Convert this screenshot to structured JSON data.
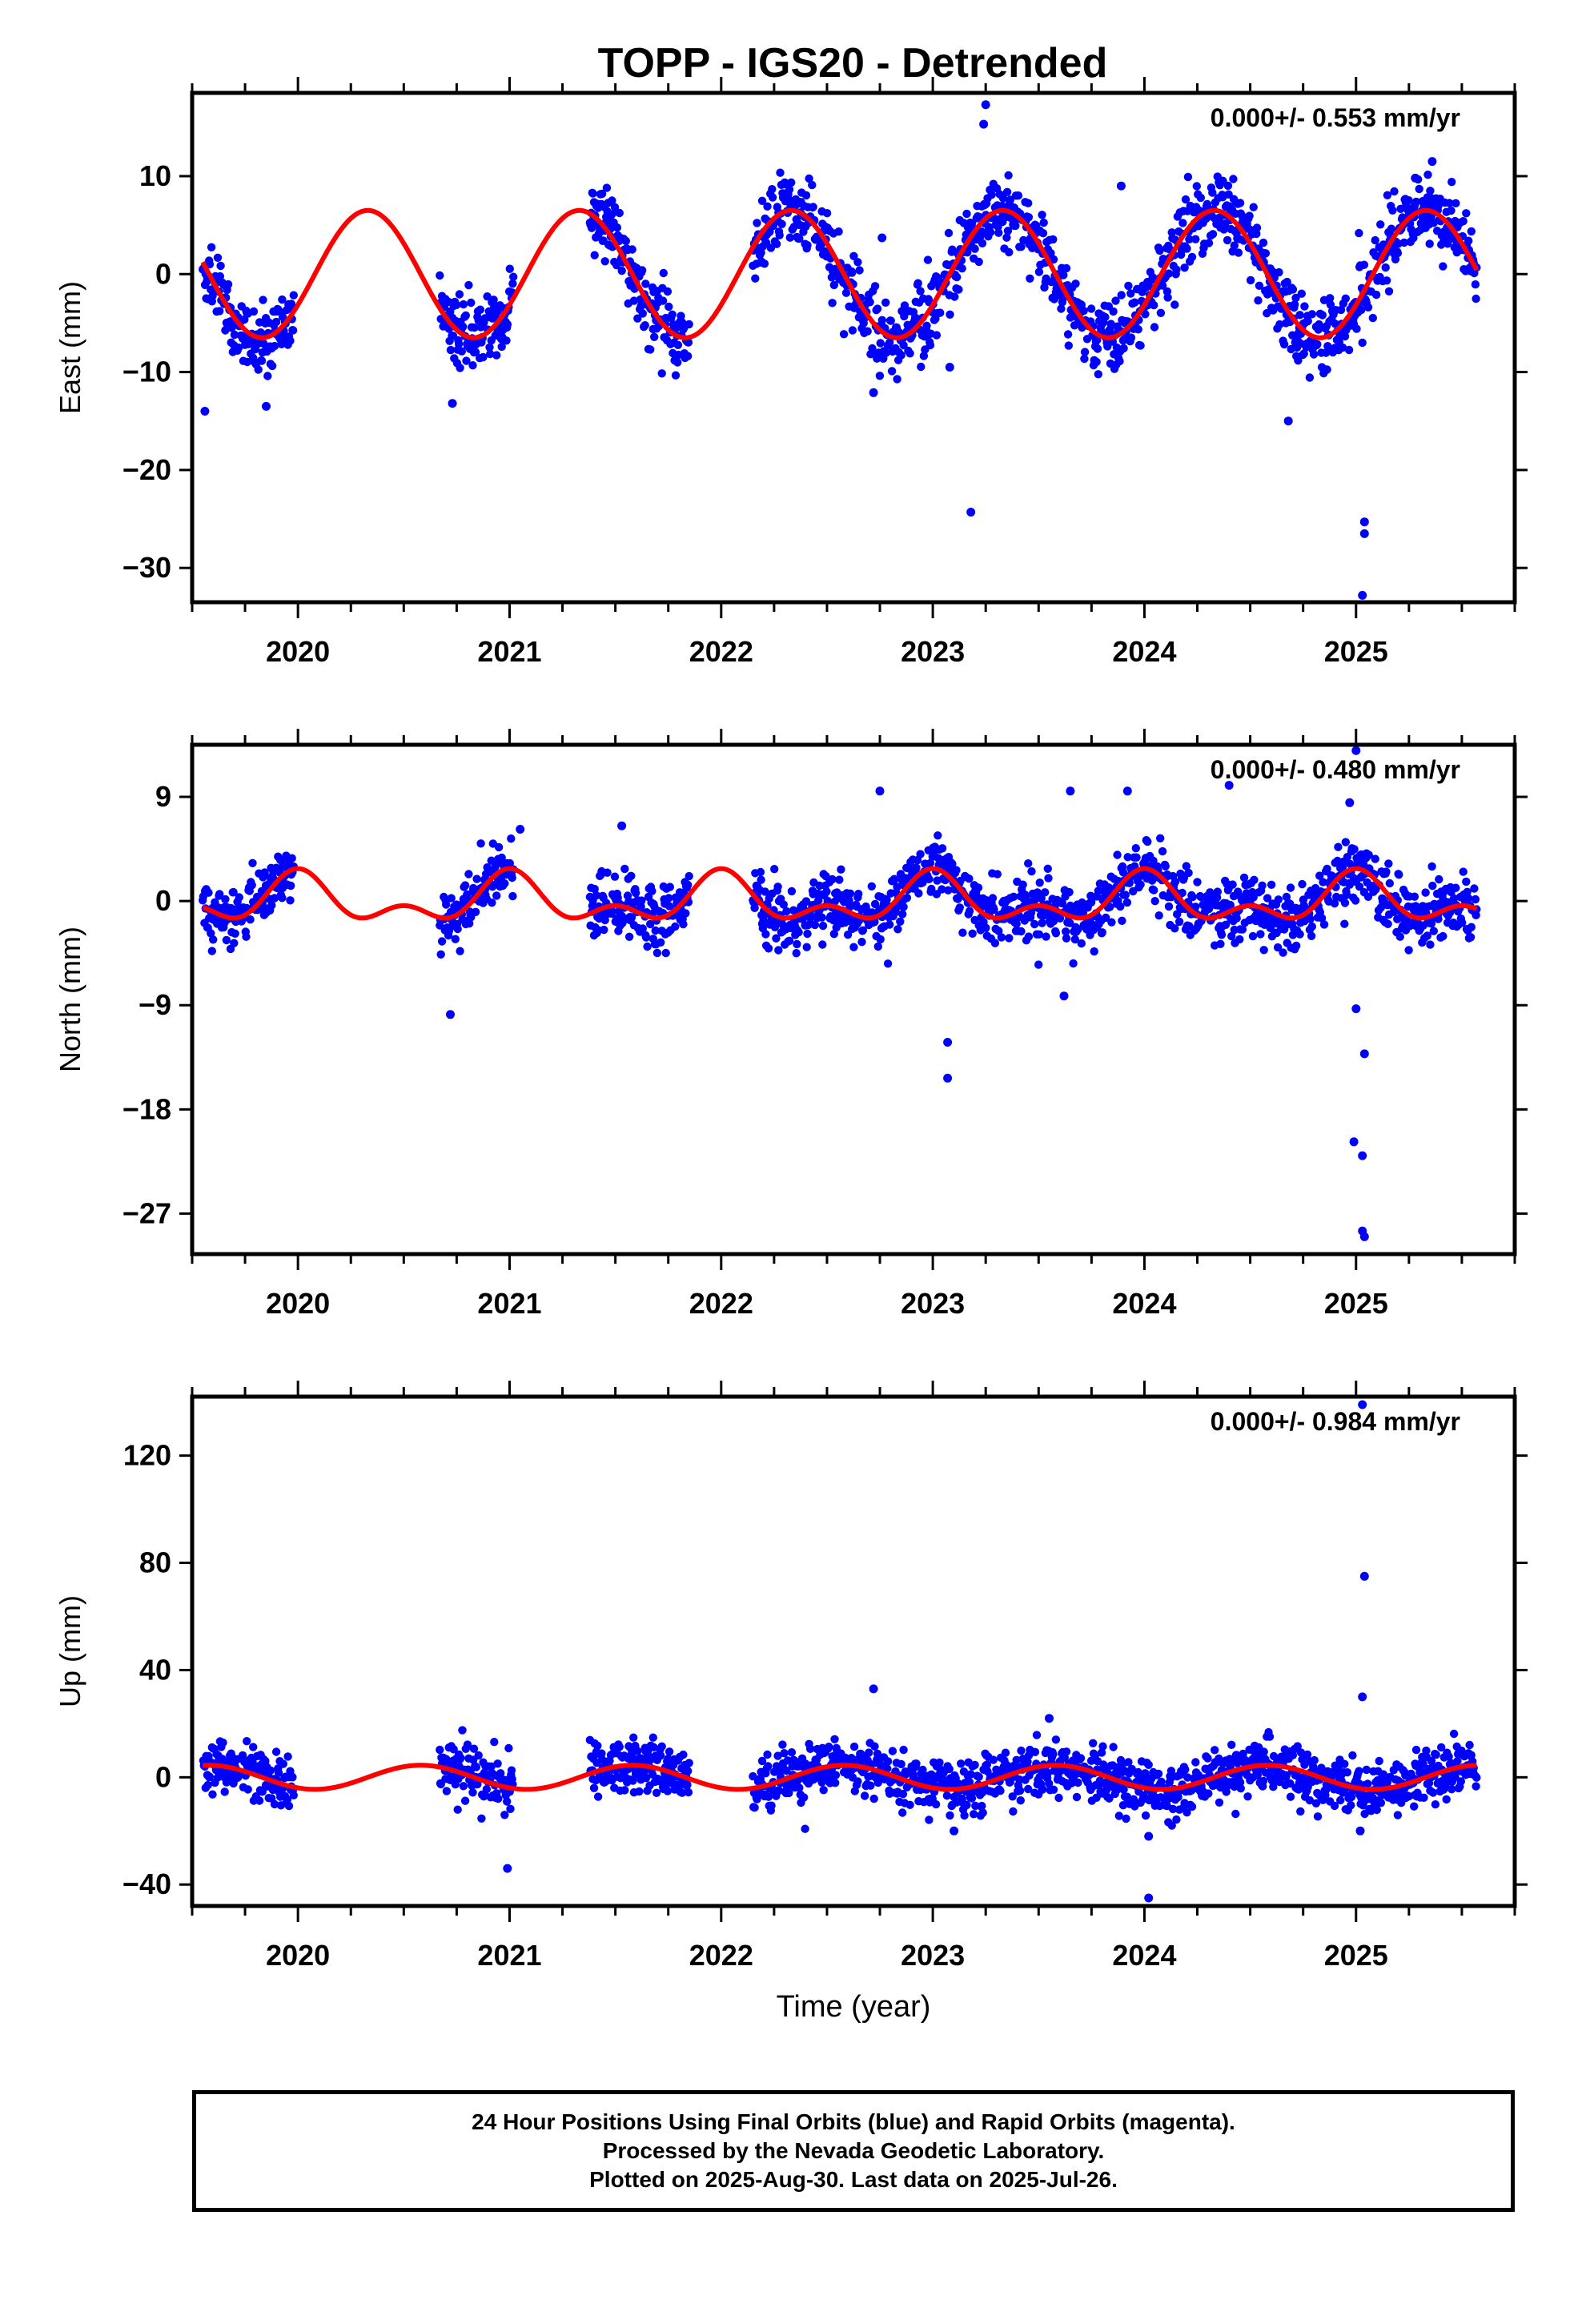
{
  "title": "TOPP - IGS20 - Detrended",
  "footer": {
    "lines": [
      "24 Hour Positions Using Final Orbits (blue) and Rapid Orbits (magenta).",
      "Processed by the Nevada Geodetic Laboratory.",
      "Plotted on 2025-Aug-30. Last data on 2025-Jul-26."
    ]
  },
  "colors": {
    "points": "#0000ff",
    "model": "#ff0000",
    "axis": "#000000"
  },
  "chart_data": [
    {
      "type": "scatter",
      "ylabel": "East (mm)",
      "xlabel": "",
      "annotation": "0.000+/- 0.553 mm/yr",
      "xlim": [
        2019.5,
        2025.75
      ],
      "ylim": [
        -33.5,
        18.5
      ],
      "yticks": [
        10,
        0,
        -10,
        -20,
        -30
      ],
      "ytick_labels": [
        "10",
        "0",
        "−10",
        "−20",
        "−30"
      ],
      "xticks": [
        2020,
        2021,
        2022,
        2023,
        2024,
        2025
      ],
      "xtick_labels": [
        "2020",
        "2021",
        "2022",
        "2023",
        "2024",
        "2025"
      ],
      "data_segments": [
        [
          2019.55,
          2019.98
        ],
        [
          2020.67,
          2021.02
        ],
        [
          2021.38,
          2021.85
        ],
        [
          2022.15,
          2025.57
        ]
      ],
      "seasonal": {
        "amplitude": 6.5,
        "peak": 2020.33,
        "harmonic2": 0.0,
        "noise": 1.8
      },
      "outliers": [
        {
          "x": 2023.25,
          "y": 17.3
        },
        {
          "x": 2023.24,
          "y": 15.3
        },
        {
          "x": 2023.18,
          "y": -24.3
        },
        {
          "x": 2025.04,
          "y": -25.3
        },
        {
          "x": 2025.04,
          "y": -26.5
        },
        {
          "x": 2025.03,
          "y": -32.8
        },
        {
          "x": 2019.56,
          "y": -14.0
        },
        {
          "x": 2020.73,
          "y": -13.2
        },
        {
          "x": 2019.85,
          "y": -13.5
        },
        {
          "x": 2022.72,
          "y": -12.1
        },
        {
          "x": 2023.08,
          "y": -9.5
        },
        {
          "x": 2024.68,
          "y": -15.0
        },
        {
          "x": 2025.36,
          "y": 11.5
        },
        {
          "x": 2023.89,
          "y": 9.0
        },
        {
          "x": 2024.37,
          "y": 9.5
        },
        {
          "x": 2025.28,
          "y": 9.8
        },
        {
          "x": 2022.76,
          "y": 3.7
        }
      ]
    },
    {
      "type": "scatter",
      "ylabel": "North (mm)",
      "xlabel": "",
      "annotation": "0.000+/- 0.480 mm/yr",
      "xlim": [
        2019.5,
        2025.75
      ],
      "ylim": [
        -30.5,
        13.5
      ],
      "yticks": [
        9,
        0,
        -9,
        -18,
        -27
      ],
      "ytick_labels": [
        "9",
        "0",
        "−9",
        "−18",
        "−27"
      ],
      "xticks": [
        2020,
        2021,
        2022,
        2023,
        2024,
        2025
      ],
      "xtick_labels": [
        "2020",
        "2021",
        "2022",
        "2023",
        "2024",
        "2025"
      ],
      "data_segments": [
        [
          2019.55,
          2019.98
        ],
        [
          2020.67,
          2021.02
        ],
        [
          2021.38,
          2021.85
        ],
        [
          2022.15,
          2025.57
        ]
      ],
      "seasonal": {
        "amplitude": 1.6,
        "peak": 2020.0,
        "harmonic2": 1.2,
        "noise": 1.4
      },
      "outliers": [
        {
          "x": 2025.0,
          "y": 13.0
        },
        {
          "x": 2024.97,
          "y": 8.5
        },
        {
          "x": 2022.75,
          "y": 9.5
        },
        {
          "x": 2023.65,
          "y": 9.5
        },
        {
          "x": 2023.92,
          "y": 9.5
        },
        {
          "x": 2024.4,
          "y": 10.0
        },
        {
          "x": 2023.07,
          "y": -12.2
        },
        {
          "x": 2023.07,
          "y": -15.3
        },
        {
          "x": 2025.0,
          "y": -9.3
        },
        {
          "x": 2025.04,
          "y": -13.2
        },
        {
          "x": 2024.99,
          "y": -20.8
        },
        {
          "x": 2025.03,
          "y": -22.0
        },
        {
          "x": 2025.03,
          "y": -28.5
        },
        {
          "x": 2025.04,
          "y": -29.0
        },
        {
          "x": 2020.72,
          "y": -9.8
        },
        {
          "x": 2023.62,
          "y": -8.2
        },
        {
          "x": 2021.05,
          "y": 6.2
        },
        {
          "x": 2021.53,
          "y": 6.5
        }
      ]
    },
    {
      "type": "scatter",
      "ylabel": "Up (mm)",
      "xlabel": "Time (year)",
      "annotation": "0.000+/- 0.984 mm/yr",
      "xlim": [
        2019.5,
        2025.75
      ],
      "ylim": [
        -48,
        142
      ],
      "yticks": [
        120,
        80,
        40,
        0,
        -40
      ],
      "ytick_labels": [
        "120",
        "80",
        "40",
        "0",
        "−40"
      ],
      "xticks": [
        2020,
        2021,
        2022,
        2023,
        2024,
        2025
      ],
      "xtick_labels": [
        "2020",
        "2021",
        "2022",
        "2023",
        "2024",
        "2025"
      ],
      "data_segments": [
        [
          2019.55,
          2019.98
        ],
        [
          2020.67,
          2021.02
        ],
        [
          2021.38,
          2021.85
        ],
        [
          2022.15,
          2025.57
        ]
      ],
      "seasonal": {
        "amplitude": 4.5,
        "peak": 2019.58,
        "harmonic2": 0.0,
        "noise": 5.0
      },
      "outliers": [
        {
          "x": 2025.03,
          "y": 139.0
        },
        {
          "x": 2025.04,
          "y": 75.0
        },
        {
          "x": 2025.03,
          "y": 30.0
        },
        {
          "x": 2022.72,
          "y": 33.0
        },
        {
          "x": 2024.02,
          "y": -45.0
        },
        {
          "x": 2020.99,
          "y": -34.0
        },
        {
          "x": 2023.55,
          "y": 22.0
        },
        {
          "x": 2025.02,
          "y": -20.0
        },
        {
          "x": 2024.02,
          "y": -22.0
        },
        {
          "x": 2023.1,
          "y": -20.0
        }
      ]
    }
  ]
}
